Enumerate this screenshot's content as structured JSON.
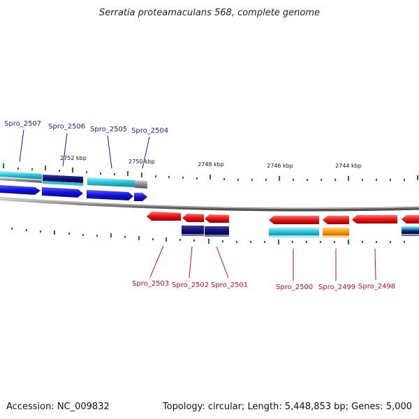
{
  "title": "Serratia proteamaculans 568, complete genome",
  "footer": {
    "accession": "Accession: NC_009832",
    "summary": "Topology: circular; Length: 5,448,853 bp; Genes: 5,000"
  },
  "scale_labels": [
    "2752 kbp",
    "2750 kbp",
    "2748 kbp",
    "2746 kbp",
    "2744 kbp"
  ],
  "genes_top": [
    {
      "name": "Spro_2507"
    },
    {
      "name": "Spro_2506"
    },
    {
      "name": "Spro_2505"
    },
    {
      "name": "Spro_2504"
    }
  ],
  "genes_bottom": [
    {
      "name": "Spro_2503"
    },
    {
      "name": "Spro_2502"
    },
    {
      "name": "Spro_2501"
    },
    {
      "name": "Spro_2500"
    },
    {
      "name": "Spro_2499"
    },
    {
      "name": "Spro_2498"
    }
  ],
  "colors": {
    "forward_gene": "#1010e0",
    "reverse_gene": "#ee1111",
    "cyan_track": "#22c4d8",
    "navy_track": "#101078",
    "orange_track": "#ff9900",
    "tick": "#1a7a1a",
    "backbone": "#888888",
    "label_blue": "#1a1aa6",
    "label_red": "#cc1111"
  }
}
